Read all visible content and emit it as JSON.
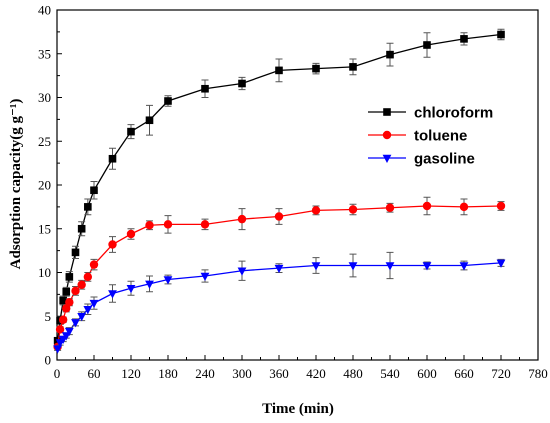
{
  "chart_data": {
    "type": "line",
    "xlabel": "Time (min)",
    "ylabel": "Adsorption capacity(g g⁻¹)",
    "xlim": [
      0,
      780
    ],
    "ylim": [
      0,
      40
    ],
    "xticks": [
      0,
      60,
      120,
      180,
      240,
      300,
      360,
      420,
      480,
      540,
      600,
      660,
      720,
      780
    ],
    "yticks": [
      0,
      5,
      10,
      15,
      20,
      25,
      30,
      35,
      40
    ],
    "x_tick_labels": [
      "0",
      "60",
      "120",
      "180",
      "240",
      "300",
      "360",
      "420",
      "480",
      "540",
      "600",
      "660",
      "720",
      "780"
    ],
    "y_tick_labels": [
      "0",
      "5",
      "10",
      "15",
      "20",
      "25",
      "30",
      "35",
      "40"
    ],
    "grid": false,
    "legend_position": "top-right",
    "series": [
      {
        "name": "chloroform",
        "color": "#000000",
        "marker": "square",
        "x": [
          1,
          5,
          10,
          15,
          20,
          30,
          40,
          50,
          60,
          90,
          120,
          150,
          180,
          240,
          300,
          360,
          420,
          480,
          540,
          600,
          660,
          720
        ],
        "y": [
          2.2,
          4.5,
          6.8,
          7.8,
          9.5,
          12.3,
          15.0,
          17.5,
          19.4,
          23.0,
          26.1,
          27.4,
          29.6,
          31.0,
          31.6,
          33.1,
          33.3,
          33.5,
          34.9,
          36.0,
          36.7,
          37.2
        ],
        "err": [
          0.3,
          0.4,
          0.5,
          0.5,
          0.6,
          0.7,
          0.8,
          0.9,
          1.0,
          1.2,
          0.8,
          1.7,
          0.6,
          1.0,
          0.7,
          1.3,
          0.6,
          0.9,
          1.3,
          1.4,
          0.7,
          0.6
        ]
      },
      {
        "name": "toluene",
        "color": "#ff0000",
        "marker": "circle",
        "x": [
          1,
          5,
          10,
          15,
          20,
          30,
          40,
          50,
          60,
          90,
          120,
          150,
          180,
          240,
          300,
          360,
          420,
          480,
          540,
          600,
          660,
          720
        ],
        "y": [
          1.5,
          3.5,
          4.6,
          5.9,
          6.6,
          7.9,
          8.6,
          9.5,
          10.9,
          13.2,
          14.4,
          15.4,
          15.5,
          15.5,
          16.1,
          16.4,
          17.1,
          17.2,
          17.4,
          17.6,
          17.5,
          17.6
        ],
        "err": [
          0.2,
          0.3,
          0.3,
          0.4,
          0.4,
          0.5,
          0.5,
          0.5,
          0.6,
          0.9,
          0.6,
          0.5,
          1.0,
          0.6,
          1.2,
          0.9,
          0.5,
          0.6,
          0.5,
          1.0,
          0.9,
          0.5
        ]
      },
      {
        "name": "gasoline",
        "color": "#0000ff",
        "marker": "triangle-down",
        "x": [
          1,
          5,
          10,
          15,
          20,
          30,
          40,
          50,
          60,
          90,
          120,
          150,
          180,
          240,
          300,
          360,
          420,
          480,
          540,
          600,
          660,
          720
        ],
        "y": [
          1.3,
          2.0,
          2.4,
          2.8,
          3.3,
          4.3,
          5.0,
          5.8,
          6.5,
          7.6,
          8.2,
          8.7,
          9.2,
          9.6,
          10.2,
          10.5,
          10.8,
          10.8,
          10.8,
          10.8,
          10.8,
          11.1
        ],
        "err": [
          0.2,
          0.3,
          0.3,
          0.3,
          0.4,
          0.4,
          0.5,
          0.6,
          0.7,
          1.0,
          0.8,
          0.9,
          0.5,
          0.7,
          1.1,
          0.5,
          0.9,
          1.3,
          1.5,
          0.4,
          0.5,
          0.4
        ]
      }
    ]
  }
}
